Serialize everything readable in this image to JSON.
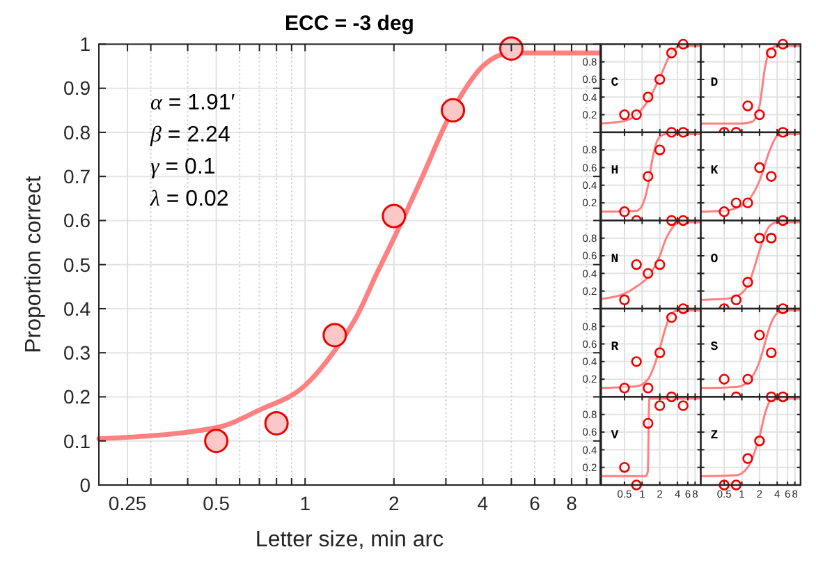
{
  "chart_data": [
    {
      "type": "scatter",
      "title": "ECC = -3 deg",
      "xlabel": "Letter size, min arc",
      "ylabel": "Proportion correct",
      "log": "x",
      "xlim": [
        0.2,
        10
      ],
      "ylim": [
        0,
        1
      ],
      "xticks": [
        0.25,
        {
          "value": 0.3,
          "label": null
        },
        {
          "value": 0.4,
          "label": null
        },
        0.5,
        {
          "value": 0.6,
          "label": null
        },
        {
          "value": 0.7,
          "label": null
        },
        {
          "value": 0.8,
          "label": null
        },
        {
          "value": 0.9,
          "label": null
        },
        1,
        2,
        {
          "value": 3,
          "label": null
        },
        4,
        {
          "value": 5,
          "label": null
        },
        6,
        {
          "value": 7,
          "label": null
        },
        8,
        {
          "value": 9,
          "label": null
        }
      ],
      "yticks": [
        0,
        0.1,
        0.2,
        0.3,
        0.4,
        0.5,
        0.6,
        0.7,
        0.8,
        0.9,
        1
      ],
      "grid": true,
      "marker": "circle",
      "annotations": [
        "α = 1.91′",
        "β = 2.24",
        "γ = 0.1",
        "λ = 0.02"
      ],
      "series": [
        {
          "type": "line",
          "marker": "none",
          "color": "#ff8080",
          "x": [
            0.2,
            0.5,
            0.7,
            1,
            1.26,
            1.5,
            1.75,
            2,
            2.5,
            3,
            3.5,
            4,
            5,
            10
          ],
          "values": [
            0.105,
            0.13,
            0.17,
            0.226,
            0.305,
            0.384,
            0.48,
            0.56,
            0.7,
            0.82,
            0.9,
            0.95,
            0.98,
            0.98
          ]
        },
        {
          "type": "scatter",
          "color": "#ee0000",
          "x": [
            0.5,
            0.8,
            1.26,
            2,
            3.17,
            5
          ],
          "values": [
            0.1,
            0.14,
            0.34,
            0.61,
            0.85,
            0.99
          ]
        }
      ]
    },
    {
      "type": "scatter",
      "title": "C",
      "log": "x",
      "xlim": [
        0.2,
        10
      ],
      "ylim": [
        0,
        1
      ],
      "xticks": [
        0.5,
        1,
        2,
        4,
        6,
        8
      ],
      "yticks": [
        0.2,
        0.4,
        0.6,
        0.8
      ],
      "grid": true,
      "marker": "circle",
      "tick_labels": "y",
      "series": [
        {
          "type": "line",
          "marker": "none",
          "color": "#ff8080",
          "x": [
            0.2,
            0.5,
            0.8,
            1.26,
            2,
            3,
            4,
            5,
            10
          ],
          "values": [
            0.1,
            0.13,
            0.2,
            0.36,
            0.62,
            0.88,
            0.97,
            0.98,
            0.98
          ]
        },
        {
          "type": "scatter",
          "color": "#ee0000",
          "x": [
            0.5,
            0.8,
            1.26,
            2,
            3.17,
            5
          ],
          "values": [
            0.2,
            0.2,
            0.4,
            0.6,
            0.9,
            1
          ]
        }
      ]
    },
    {
      "type": "scatter",
      "title": "D",
      "log": "x",
      "xlim": [
        0.2,
        10
      ],
      "ylim": [
        0,
        1
      ],
      "xticks": [
        0.5,
        1,
        2,
        4,
        6,
        8
      ],
      "yticks": [
        0.2,
        0.4,
        0.6,
        0.8
      ],
      "grid": true,
      "marker": "circle",
      "tick_labels": false,
      "series": [
        {
          "type": "line",
          "marker": "none",
          "color": "#ff8080",
          "x": [
            0.2,
            1,
            1.5,
            2,
            2.5,
            3,
            4,
            10
          ],
          "values": [
            0.1,
            0.1,
            0.12,
            0.3,
            0.75,
            0.93,
            0.98,
            0.98
          ]
        },
        {
          "type": "scatter",
          "color": "#ee0000",
          "x": [
            0.5,
            0.8,
            1.26,
            2,
            3.17,
            5
          ],
          "values": [
            0,
            0,
            0.3,
            0.2,
            0.9,
            1
          ]
        }
      ]
    },
    {
      "type": "scatter",
      "title": "H",
      "log": "x",
      "xlim": [
        0.2,
        10
      ],
      "ylim": [
        0,
        1
      ],
      "xticks": [
        0.5,
        1,
        2,
        4,
        6,
        8
      ],
      "yticks": [
        0.2,
        0.4,
        0.6,
        0.8
      ],
      "grid": true,
      "marker": "circle",
      "tick_labels": "y",
      "series": [
        {
          "type": "line",
          "marker": "none",
          "color": "#ff8080",
          "x": [
            0.2,
            0.8,
            1,
            1.26,
            1.5,
            1.75,
            2,
            2.5,
            10
          ],
          "values": [
            0.1,
            0.11,
            0.17,
            0.4,
            0.7,
            0.88,
            0.95,
            0.98,
            0.98
          ]
        },
        {
          "type": "scatter",
          "color": "#ee0000",
          "x": [
            0.5,
            0.8,
            1.26,
            2,
            3.17,
            5
          ],
          "values": [
            0.1,
            0,
            0.5,
            0.8,
            1,
            1
          ]
        }
      ]
    },
    {
      "type": "scatter",
      "title": "K",
      "log": "x",
      "xlim": [
        0.2,
        10
      ],
      "ylim": [
        0,
        1
      ],
      "xticks": [
        0.5,
        1,
        2,
        4,
        6,
        8
      ],
      "yticks": [
        0.2,
        0.4,
        0.6,
        0.8
      ],
      "grid": true,
      "marker": "circle",
      "tick_labels": false,
      "series": [
        {
          "type": "line",
          "marker": "none",
          "color": "#ff8080",
          "x": [
            0.2,
            0.5,
            0.8,
            1.26,
            2,
            3,
            4,
            5,
            10
          ],
          "values": [
            0.1,
            0.11,
            0.14,
            0.22,
            0.45,
            0.8,
            0.96,
            0.98,
            0.98
          ]
        },
        {
          "type": "scatter",
          "color": "#ee0000",
          "x": [
            0.5,
            0.8,
            1.26,
            2,
            3.17,
            5
          ],
          "values": [
            0.1,
            0.2,
            0.2,
            0.6,
            0.5,
            1
          ]
        }
      ]
    },
    {
      "type": "scatter",
      "title": "N",
      "log": "x",
      "xlim": [
        0.2,
        10
      ],
      "ylim": [
        0,
        1
      ],
      "xticks": [
        0.5,
        1,
        2,
        4,
        6,
        8
      ],
      "yticks": [
        0.2,
        0.4,
        0.6,
        0.8
      ],
      "grid": true,
      "marker": "circle",
      "tick_labels": "y",
      "series": [
        {
          "type": "line",
          "marker": "none",
          "color": "#ff8080",
          "x": [
            0.2,
            0.5,
            0.8,
            1.26,
            2,
            2.5,
            3,
            4,
            5,
            10
          ],
          "values": [
            0.11,
            0.17,
            0.25,
            0.36,
            0.6,
            0.78,
            0.88,
            0.97,
            0.98,
            0.98
          ]
        },
        {
          "type": "scatter",
          "color": "#ee0000",
          "x": [
            0.5,
            0.8,
            1.26,
            2,
            3.17,
            5
          ],
          "values": [
            0.1,
            0.5,
            0.4,
            0.5,
            1,
            1
          ]
        }
      ]
    },
    {
      "type": "scatter",
      "title": "O",
      "log": "x",
      "xlim": [
        0.2,
        10
      ],
      "ylim": [
        0,
        1
      ],
      "xticks": [
        0.5,
        1,
        2,
        4,
        6,
        8
      ],
      "yticks": [
        0.2,
        0.4,
        0.6,
        0.8
      ],
      "grid": true,
      "marker": "circle",
      "tick_labels": false,
      "series": [
        {
          "type": "line",
          "marker": "none",
          "color": "#ff8080",
          "x": [
            0.2,
            0.5,
            0.8,
            1.26,
            1.6,
            2,
            2.5,
            3,
            4,
            10
          ],
          "values": [
            0.1,
            0.11,
            0.14,
            0.26,
            0.45,
            0.66,
            0.85,
            0.94,
            0.98,
            0.98
          ]
        },
        {
          "type": "scatter",
          "color": "#ee0000",
          "x": [
            0.5,
            0.8,
            1.26,
            2,
            3.17,
            5
          ],
          "values": [
            0,
            0.1,
            0.3,
            0.8,
            0.8,
            1
          ]
        }
      ]
    },
    {
      "type": "scatter",
      "title": "R",
      "log": "x",
      "xlim": [
        0.2,
        10
      ],
      "ylim": [
        0,
        1
      ],
      "xticks": [
        0.5,
        1,
        2,
        4,
        6,
        8
      ],
      "yticks": [
        0.2,
        0.4,
        0.6,
        0.8
      ],
      "grid": true,
      "marker": "circle",
      "tick_labels": "y",
      "series": [
        {
          "type": "line",
          "marker": "none",
          "color": "#ff8080",
          "x": [
            0.2,
            0.8,
            1.26,
            1.6,
            2,
            2.5,
            3,
            4,
            10
          ],
          "values": [
            0.1,
            0.12,
            0.2,
            0.35,
            0.55,
            0.78,
            0.92,
            0.98,
            0.98
          ]
        },
        {
          "type": "scatter",
          "color": "#ee0000",
          "x": [
            0.5,
            0.8,
            1.26,
            2,
            3.17,
            5
          ],
          "values": [
            0.1,
            0.4,
            0.1,
            0.5,
            0.9,
            1
          ]
        }
      ]
    },
    {
      "type": "scatter",
      "title": "S",
      "log": "x",
      "xlim": [
        0.2,
        10
      ],
      "ylim": [
        0,
        1
      ],
      "xticks": [
        0.5,
        1,
        2,
        4,
        6,
        8
      ],
      "yticks": [
        0.2,
        0.4,
        0.6,
        0.8
      ],
      "grid": true,
      "marker": "circle",
      "tick_labels": false,
      "series": [
        {
          "type": "line",
          "marker": "none",
          "color": "#ff8080",
          "x": [
            0.2,
            0.8,
            1.26,
            2,
            2.5,
            3,
            4,
            5,
            10
          ],
          "values": [
            0.1,
            0.11,
            0.17,
            0.4,
            0.62,
            0.8,
            0.95,
            0.98,
            0.98
          ]
        },
        {
          "type": "scatter",
          "color": "#ee0000",
          "x": [
            0.5,
            0.8,
            1.26,
            2,
            3.17,
            5
          ],
          "values": [
            0.2,
            0,
            0.2,
            0.7,
            0.5,
            1
          ]
        }
      ]
    },
    {
      "type": "scatter",
      "title": "V",
      "log": "x",
      "xlim": [
        0.2,
        10
      ],
      "ylim": [
        0,
        1
      ],
      "xticks": [
        0.5,
        1,
        2,
        4,
        6,
        8
      ],
      "yticks": [
        0.2,
        0.4,
        0.6,
        0.8
      ],
      "grid": true,
      "marker": "circle",
      "series": [
        {
          "type": "line",
          "marker": "none",
          "color": "#ff8080",
          "x": [
            0.2,
            1.15,
            1.25,
            1.32,
            10
          ],
          "values": [
            0.1,
            0.1,
            0.15,
            0.98,
            0.98
          ]
        },
        {
          "type": "scatter",
          "color": "#ee0000",
          "x": [
            0.5,
            0.8,
            1.26,
            2,
            3.17,
            5
          ],
          "values": [
            0.2,
            0,
            0.7,
            0.9,
            1,
            0.9
          ]
        }
      ]
    },
    {
      "type": "scatter",
      "title": "Z",
      "log": "x",
      "xlim": [
        0.2,
        10
      ],
      "ylim": [
        0,
        1
      ],
      "xticks": [
        0.5,
        1,
        2,
        4,
        6,
        8
      ],
      "yticks": [
        0.2,
        0.4,
        0.6,
        0.8
      ],
      "grid": true,
      "marker": "circle",
      "tick_labels": "x",
      "series": [
        {
          "type": "line",
          "marker": "none",
          "color": "#ff8080",
          "x": [
            0.2,
            0.8,
            1.26,
            1.6,
            2,
            2.5,
            3,
            3.5,
            10
          ],
          "values": [
            0.1,
            0.11,
            0.2,
            0.35,
            0.55,
            0.82,
            0.95,
            0.98,
            0.98
          ]
        },
        {
          "type": "scatter",
          "color": "#ee0000",
          "x": [
            0.5,
            0.8,
            1.26,
            2,
            3.17,
            5
          ],
          "values": [
            0,
            0,
            0.3,
            0.5,
            1,
            1
          ]
        }
      ]
    }
  ]
}
